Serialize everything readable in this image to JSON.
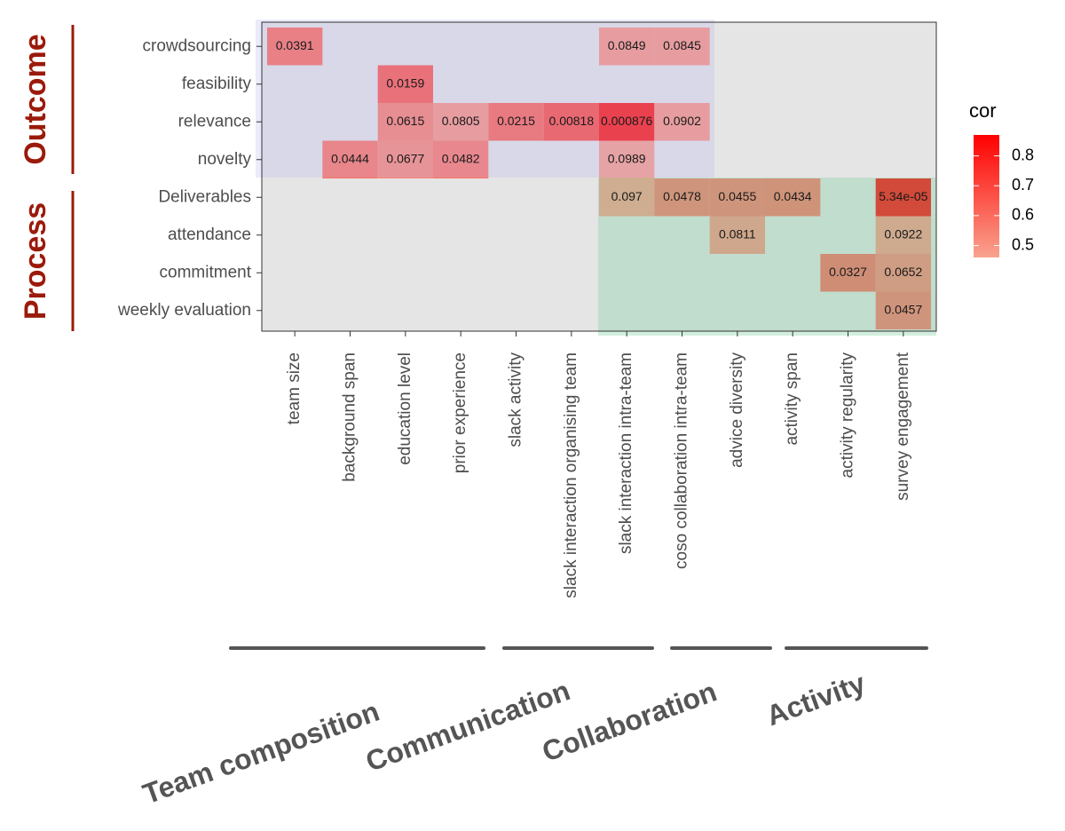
{
  "chart_data": {
    "type": "heatmap",
    "rows": [
      "crowdsourcing",
      "feasibility",
      "relevance",
      "novelty",
      "Deliverables",
      "attendance",
      "commitment",
      "weekly evaluation"
    ],
    "columns": [
      "team size",
      "background span",
      "education level",
      "prior experience",
      "slack activity",
      "slack interaction organising team",
      "slack interaction intra-team",
      "coso collaboration  intra-team",
      "advice diversity",
      "activity span",
      "activity regularity",
      "survey engagement"
    ],
    "cor": [
      [
        0.6,
        null,
        null,
        null,
        null,
        null,
        0.5,
        0.5,
        null,
        null,
        null,
        null
      ],
      [
        null,
        null,
        0.65,
        null,
        null,
        null,
        null,
        null,
        null,
        null,
        null,
        null
      ],
      [
        null,
        null,
        0.55,
        0.5,
        0.62,
        0.68,
        0.82,
        0.5,
        null,
        null,
        null,
        null
      ],
      [
        null,
        0.58,
        0.53,
        0.57,
        null,
        null,
        0.48,
        null,
        null,
        null,
        null,
        null
      ],
      [
        null,
        null,
        null,
        null,
        null,
        null,
        0.48,
        0.57,
        0.57,
        0.58,
        null,
        0.86
      ],
      [
        null,
        null,
        null,
        null,
        null,
        null,
        null,
        null,
        0.5,
        null,
        null,
        0.49
      ],
      [
        null,
        null,
        null,
        null,
        null,
        null,
        null,
        null,
        null,
        null,
        0.6,
        0.54
      ],
      [
        null,
        null,
        null,
        null,
        null,
        null,
        null,
        null,
        null,
        null,
        null,
        0.57
      ]
    ],
    "labels": [
      [
        "0.0391",
        null,
        null,
        null,
        null,
        null,
        "0.0849",
        "0.0845",
        null,
        null,
        null,
        null
      ],
      [
        null,
        null,
        "0.0159",
        null,
        null,
        null,
        null,
        null,
        null,
        null,
        null,
        null
      ],
      [
        null,
        null,
        "0.0615",
        "0.0805",
        "0.0215",
        "0.00818",
        "0.000876",
        "0.0902",
        null,
        null,
        null,
        null
      ],
      [
        null,
        "0.0444",
        "0.0677",
        "0.0482",
        null,
        null,
        "0.0989",
        null,
        null,
        null,
        null,
        null
      ],
      [
        null,
        null,
        null,
        null,
        null,
        null,
        "0.097",
        "0.0478",
        "0.0455",
        "0.0434",
        null,
        "5.34e-05"
      ],
      [
        null,
        null,
        null,
        null,
        null,
        null,
        null,
        null,
        "0.0811",
        null,
        null,
        "0.0922"
      ],
      [
        null,
        null,
        null,
        null,
        null,
        null,
        null,
        null,
        null,
        null,
        "0.0327",
        "0.0652"
      ],
      [
        null,
        null,
        null,
        null,
        null,
        null,
        null,
        null,
        null,
        null,
        null,
        "0.0457"
      ]
    ],
    "legend_title": "cor",
    "color_lim": [
      0.46,
      0.87
    ],
    "color_ticks": [
      0.5,
      0.6,
      0.7,
      0.8
    ],
    "color_low": "#f9a38f",
    "color_high": "#ff0000",
    "column_groups": [
      "Team composition",
      "Communication",
      "Collaboration",
      "Activity"
    ],
    "row_groups": [
      "Outcome",
      "Process"
    ]
  }
}
